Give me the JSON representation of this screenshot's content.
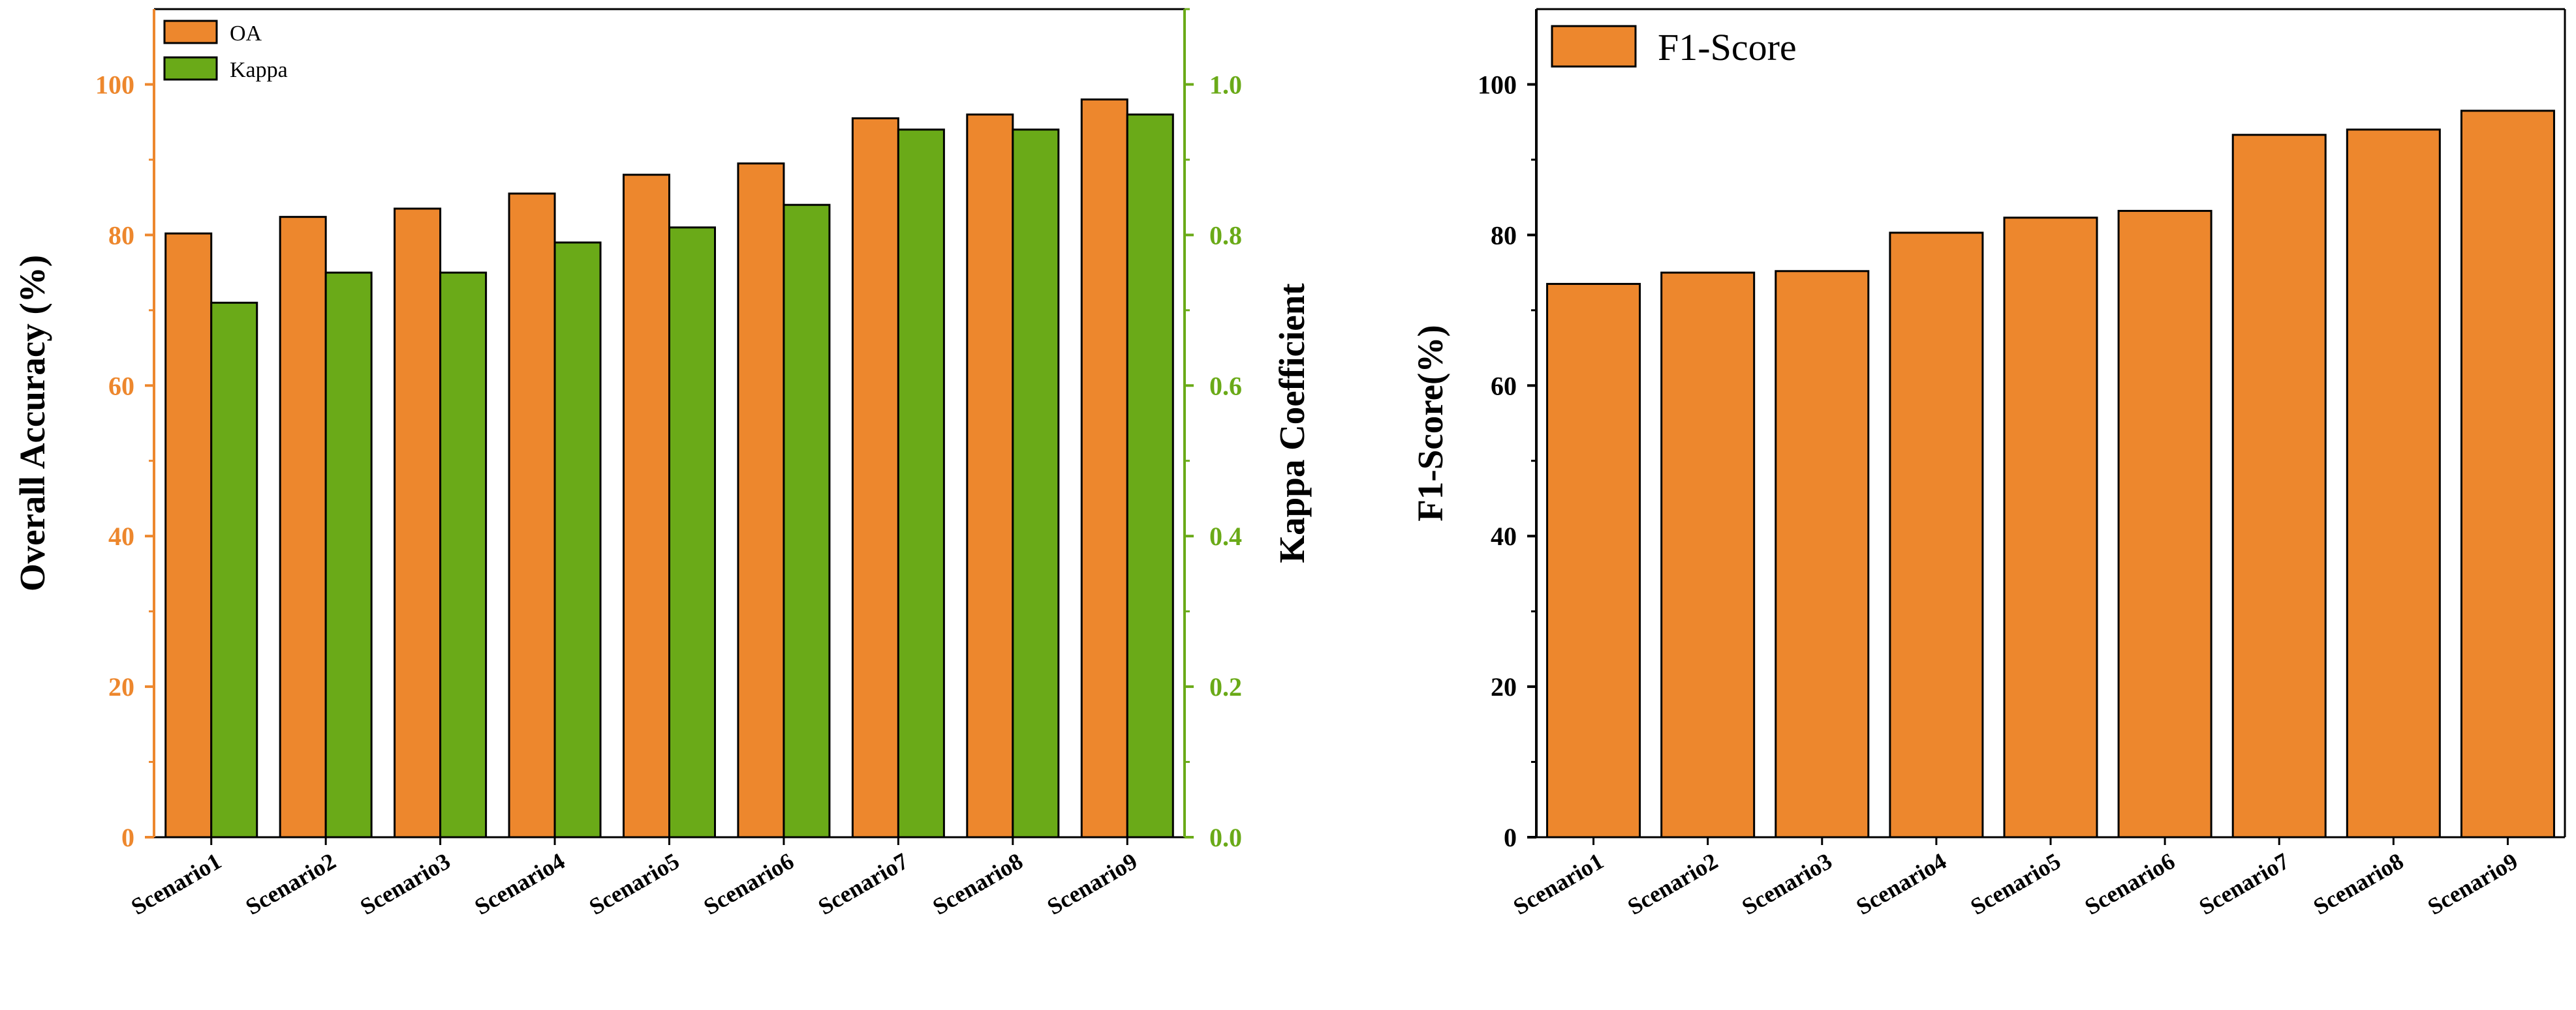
{
  "chart_data": [
    {
      "type": "bar",
      "categories": [
        "Scenario1",
        "Scenario2",
        "Scenario3",
        "Scenario4",
        "Scenario5",
        "Scenario6",
        "Scenario7",
        "Scenario8",
        "Scenario9"
      ],
      "series": [
        {
          "name": "OA",
          "axis": "left",
          "color": "#ED872D",
          "values": [
            80.2,
            82.4,
            83.5,
            85.5,
            88.0,
            89.5,
            95.5,
            96.0,
            98.0
          ]
        },
        {
          "name": "Kappa",
          "axis": "right",
          "color": "#6AAA18",
          "values": [
            0.71,
            0.75,
            0.75,
            0.79,
            0.81,
            0.84,
            0.94,
            0.94,
            0.96
          ]
        }
      ],
      "ylabel": "Overall Accuracy (%)",
      "ylabel_right": "Kappa Coefficient",
      "ylim": [
        0,
        110
      ],
      "ylim_right": [
        0,
        1.1
      ],
      "yticks": [
        0,
        20,
        40,
        60,
        80,
        100
      ],
      "yticks_right": [
        "0.0",
        "0.2",
        "0.4",
        "0.6",
        "0.8",
        "1.0"
      ],
      "left_axis_color": "#ED872D",
      "right_axis_color": "#6AAA18",
      "legend_position": "top-left"
    },
    {
      "type": "bar",
      "categories": [
        "Scenario1",
        "Scenario2",
        "Scenario3",
        "Scenario4",
        "Scenario5",
        "Scenario6",
        "Scenario7",
        "Scenario8",
        "Scenario9"
      ],
      "series": [
        {
          "name": "F1-Score",
          "color": "#ED872D",
          "values": [
            73.5,
            75.0,
            75.2,
            80.3,
            82.3,
            83.2,
            93.3,
            94.0,
            96.5
          ]
        }
      ],
      "ylabel": "F1-Score(%)",
      "ylim": [
        0,
        110
      ],
      "yticks": [
        0,
        20,
        40,
        60,
        80,
        100
      ],
      "axis_color": "#000000",
      "legend_position": "top-left"
    }
  ]
}
